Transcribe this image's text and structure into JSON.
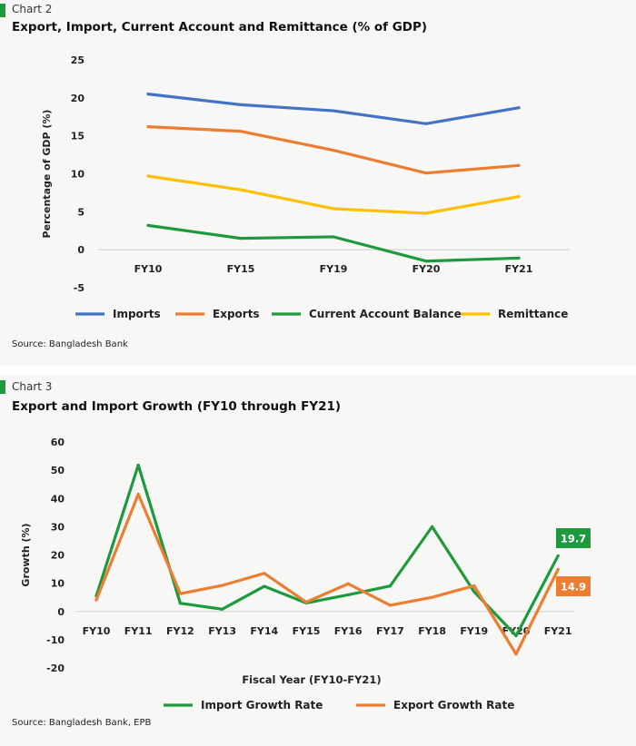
{
  "chart_data": [
    {
      "type": "line",
      "label": "Chart 2",
      "title": "Export, Import, Current Account and Remittance (% of GDP)",
      "ylabel": "Percentage of GDP (%)",
      "xlabel": "",
      "categories": [
        "FY10",
        "FY15",
        "FY19",
        "FY20",
        "FY21"
      ],
      "yticks": [
        "25",
        "20",
        "15",
        "10",
        "5",
        "0",
        "-5"
      ],
      "ylim": [
        -5,
        25
      ],
      "grid": false,
      "legend": "bottom",
      "series": [
        {
          "name": "Imports",
          "color": "#4472c4",
          "values": [
            20.5,
            19.1,
            18.3,
            16.6,
            18.7
          ]
        },
        {
          "name": "Exports",
          "color": "#ed7d31",
          "values": [
            16.2,
            15.6,
            13.1,
            10.1,
            11.1
          ]
        },
        {
          "name": "Current Account Balance",
          "color": "#1e9a3e",
          "values": [
            3.2,
            1.5,
            1.7,
            -1.5,
            -1.1
          ]
        },
        {
          "name": "Remittance",
          "color": "#ffc000",
          "values": [
            9.7,
            7.9,
            5.4,
            4.8,
            7.0
          ]
        }
      ],
      "source": "Source: Bangladesh Bank"
    },
    {
      "type": "line",
      "label": "Chart 3",
      "title": "Export and Import Growth (FY10 through FY21)",
      "ylabel": "Growth (%)",
      "xlabel": "Fiscal Year (FY10-FY21)",
      "categories": [
        "FY10",
        "FY11",
        "FY12",
        "FY13",
        "FY14",
        "FY15",
        "FY16",
        "FY17",
        "FY18",
        "FY19",
        "FY20",
        "FY21"
      ],
      "yticks": [
        "60",
        "50",
        "40",
        "30",
        "20",
        "10",
        "0",
        "-10",
        "-20"
      ],
      "ylim": [
        -20,
        60
      ],
      "grid": false,
      "legend": "bottom",
      "series": [
        {
          "name": "Import Growth Rate",
          "color": "#1e9a3e",
          "values": [
            5.5,
            51.8,
            2.9,
            0.8,
            8.9,
            3.0,
            5.9,
            9.0,
            30.0,
            7.0,
            -8.6,
            19.7
          ]
        },
        {
          "name": "Export Growth Rate",
          "color": "#ed7d31",
          "values": [
            4.1,
            41.5,
            6.3,
            9.2,
            13.5,
            3.3,
            9.8,
            2.2,
            5.0,
            9.1,
            -15.1,
            14.9
          ]
        }
      ],
      "end_labels": [
        {
          "text": "19.7",
          "color": "#1e9a3e"
        },
        {
          "text": "14.9",
          "color": "#ed7d31"
        }
      ],
      "source": "Source: Bangladesh Bank, EPB"
    }
  ]
}
